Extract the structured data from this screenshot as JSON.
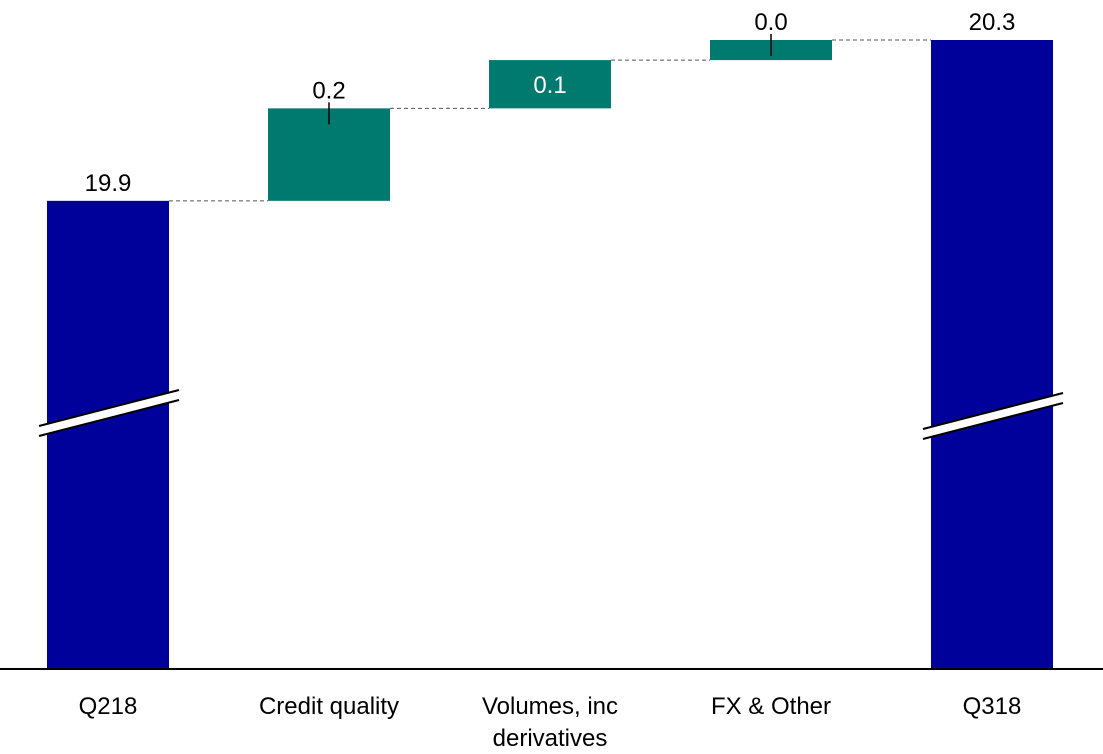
{
  "chart_data": {
    "type": "bar",
    "subtype": "waterfall",
    "title": "",
    "xlabel": "",
    "ylabel": "",
    "categories": [
      "Q218",
      "Credit quality",
      "Volumes, inc derivatives",
      "FX & Other",
      "Q318"
    ],
    "category_lines": [
      [
        "Q218"
      ],
      [
        "Credit quality"
      ],
      [
        "Volumes, inc",
        "derivatives"
      ],
      [
        "FX & Other"
      ],
      [
        "Q318"
      ]
    ],
    "value_labels": [
      "19.9",
      "0.2",
      "0.1",
      "0.0",
      "20.3"
    ],
    "bars": [
      {
        "kind": "total",
        "start": 0,
        "end": 19.9,
        "axis_break": true
      },
      {
        "kind": "delta",
        "start": 19.9,
        "end": 20.13
      },
      {
        "kind": "delta",
        "start": 20.13,
        "end": 20.25
      },
      {
        "kind": "delta",
        "start": 20.25,
        "end": 20.3
      },
      {
        "kind": "total",
        "start": 0,
        "end": 20.3,
        "axis_break": true
      }
    ],
    "y_axis_break": true,
    "visible_value_range": [
      19.35,
      20.3
    ],
    "grid": false,
    "legend": "none",
    "colors": {
      "total": "#00009A",
      "delta": "#00796E",
      "connector": "#555555"
    }
  }
}
